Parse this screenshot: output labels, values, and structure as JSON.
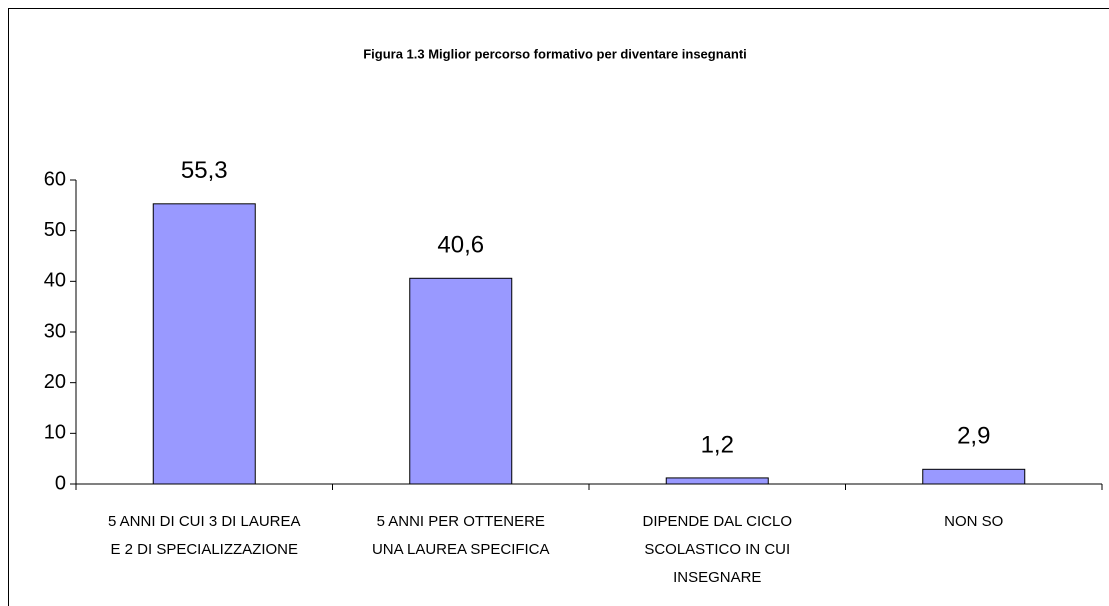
{
  "chart_data": {
    "type": "bar",
    "title": "Figura 1.3 Miglior percorso formativo per diventare insegnanti",
    "categories": [
      "5 ANNI DI CUI 3 DI LAUREA\nE 2 DI SPECIALIZZAZIONE",
      "5 ANNI PER OTTENERE\nUNA LAUREA SPECIFICA",
      "DIPENDE DAL CICLO\nSCOLASTICO IN CUI\nINSEGNARE",
      "NON SO"
    ],
    "values": [
      55.3,
      40.6,
      1.2,
      2.9
    ],
    "value_labels": [
      "55,3",
      "40,6",
      "1,2",
      "2,9"
    ],
    "color": "#9999ff",
    "ylim": [
      0,
      60
    ],
    "yticks": [
      0,
      10,
      20,
      30,
      40,
      50,
      60
    ]
  }
}
